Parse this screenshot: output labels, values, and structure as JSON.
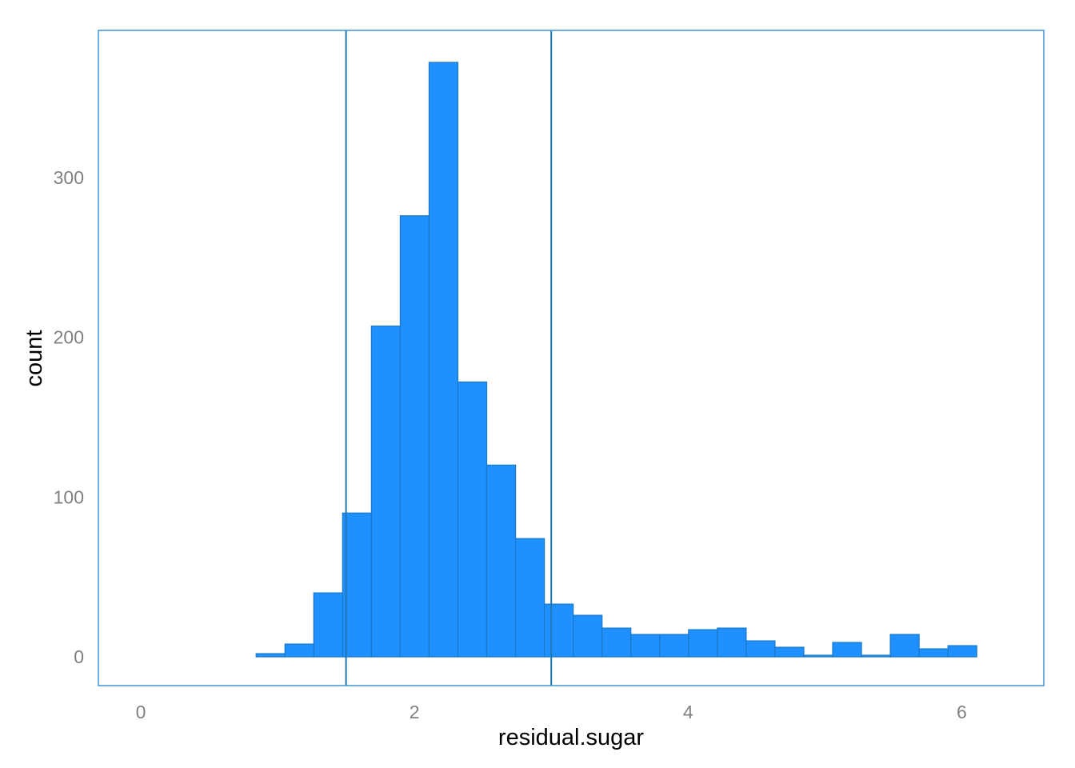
{
  "chart_data": {
    "type": "bar",
    "title": "",
    "xlabel": "residual.sugar",
    "ylabel": "count",
    "xlim": [
      -0.31,
      6.6
    ],
    "ylim": [
      -18,
      392
    ],
    "xticks": [
      0,
      2,
      4,
      6
    ],
    "yticks": [
      0,
      100,
      200,
      300
    ],
    "grid": false,
    "legend": "none",
    "bin_width": 0.2107,
    "bins": [
      {
        "x0": 0.0,
        "x1": 0.2107,
        "count": 0
      },
      {
        "x0": 0.2107,
        "x1": 0.4214,
        "count": 0
      },
      {
        "x0": 0.4214,
        "x1": 0.6321,
        "count": 0
      },
      {
        "x0": 0.6321,
        "x1": 0.8428,
        "count": 0
      },
      {
        "x0": 0.8428,
        "x1": 1.0535,
        "count": 2
      },
      {
        "x0": 1.0535,
        "x1": 1.2642,
        "count": 8
      },
      {
        "x0": 1.2642,
        "x1": 1.4749,
        "count": 40
      },
      {
        "x0": 1.4749,
        "x1": 1.6856,
        "count": 90
      },
      {
        "x0": 1.6856,
        "x1": 1.8963,
        "count": 207
      },
      {
        "x0": 1.8963,
        "x1": 2.107,
        "count": 276
      },
      {
        "x0": 2.107,
        "x1": 2.3177,
        "count": 372
      },
      {
        "x0": 2.3177,
        "x1": 2.5284,
        "count": 172
      },
      {
        "x0": 2.5284,
        "x1": 2.7391,
        "count": 120
      },
      {
        "x0": 2.7391,
        "x1": 2.9498,
        "count": 74
      },
      {
        "x0": 2.9498,
        "x1": 3.1605,
        "count": 33
      },
      {
        "x0": 3.1605,
        "x1": 3.3712,
        "count": 26
      },
      {
        "x0": 3.3712,
        "x1": 3.5819,
        "count": 18
      },
      {
        "x0": 3.5819,
        "x1": 3.7926,
        "count": 14
      },
      {
        "x0": 3.7926,
        "x1": 4.0033,
        "count": 14
      },
      {
        "x0": 4.0033,
        "x1": 4.214,
        "count": 17
      },
      {
        "x0": 4.214,
        "x1": 4.4247,
        "count": 18
      },
      {
        "x0": 4.4247,
        "x1": 4.6354,
        "count": 10
      },
      {
        "x0": 4.6354,
        "x1": 4.8461,
        "count": 6
      },
      {
        "x0": 4.8461,
        "x1": 5.0568,
        "count": 1
      },
      {
        "x0": 5.0568,
        "x1": 5.2675,
        "count": 9
      },
      {
        "x0": 5.2675,
        "x1": 5.4782,
        "count": 1
      },
      {
        "x0": 5.4782,
        "x1": 5.6889,
        "count": 14
      },
      {
        "x0": 5.6889,
        "x1": 5.8996,
        "count": 5
      },
      {
        "x0": 5.8996,
        "x1": 6.11,
        "count": 7
      }
    ],
    "vlines": [
      1.5,
      3.0
    ],
    "colors": {
      "bar_fill": "#1e90ff",
      "bar_stroke": "#1a78c8",
      "vline": "#1f78b4",
      "panel_border": "#3a94d6",
      "tick_text": "#808080",
      "axis_title": "#000000"
    }
  }
}
